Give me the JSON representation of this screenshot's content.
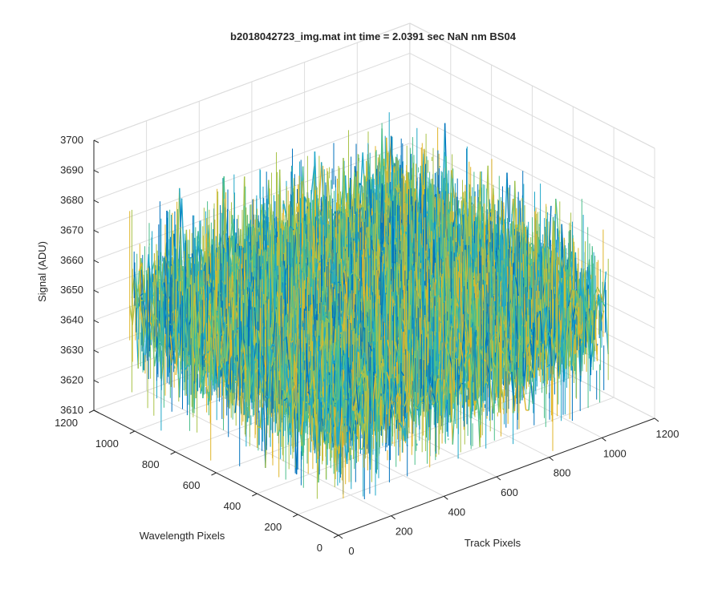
{
  "chart_data": {
    "type": "surface3d",
    "title": "b2018042723_img.mat int time = 2.0391 sec  NaN nm BS04",
    "xlabel": "Track Pixels",
    "ylabel": "Wavelength Pixels",
    "zlabel": "Signal (ADU)",
    "xlim": [
      0,
      1200
    ],
    "ylim": [
      0,
      1200
    ],
    "zlim": [
      3610,
      3700
    ],
    "x_ticks": [
      "0",
      "200",
      "400",
      "600",
      "800",
      "1000",
      "1200"
    ],
    "y_ticks": [
      "0",
      "200",
      "400",
      "600",
      "800",
      "1000",
      "1200"
    ],
    "z_ticks": [
      "3610",
      "3620",
      "3630",
      "3640",
      "3650",
      "3660",
      "3670",
      "3680",
      "3690",
      "3700"
    ],
    "x_extent": [
      0,
      1024
    ],
    "y_extent": [
      0,
      1024
    ],
    "signal_mean": 3650,
    "signal_noise_typical": [
      3635,
      3665
    ],
    "signal_spike_range": [
      3615,
      3688
    ],
    "grid": true,
    "colormap": [
      "#0072bd",
      "#1ea7c8",
      "#4cbf8c",
      "#a9c34a",
      "#e0b52a"
    ]
  }
}
